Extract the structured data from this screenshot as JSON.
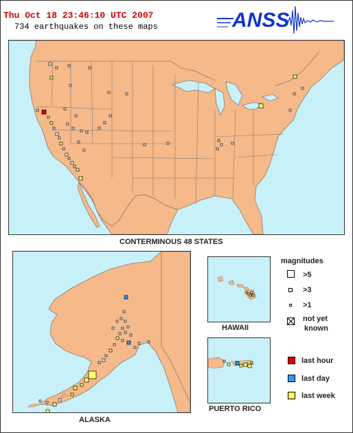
{
  "header": {
    "timestamp": "Thu Oct 18 23:46:10 UTC 2007",
    "count_text": "734 earthquakes on these maps",
    "logo_text": "ANSS",
    "logo_wave_icon": "seismogram-icon"
  },
  "maps": {
    "conus_caption": "CONTERMINOUS 48 STATES",
    "alaska_caption": "ALASKA",
    "hawaii_caption": "HAWAII",
    "puerto_rico_caption": "PUERTO RICO"
  },
  "legend": {
    "title": "magnitudes",
    "magnitudes": [
      {
        "label": ">5",
        "icon": "large-square-icon"
      },
      {
        "label": ">3",
        "icon": "medium-square-icon"
      },
      {
        "label": ">1",
        "icon": "small-square-icon"
      },
      {
        "label": "not yet known",
        "icon": "crossed-square-icon"
      }
    ],
    "not_yet_line1": "not yet",
    "not_yet_line2": "known",
    "ages": [
      {
        "label": "last hour",
        "color": "#e00000"
      },
      {
        "label": "last day",
        "color": "#3399ff"
      },
      {
        "label": "last week",
        "color": "#ffff66"
      }
    ]
  },
  "colors": {
    "land": "#f5b98a",
    "water": "#c8f0f8",
    "border": "#8a7a70",
    "title_red": "#cc0000",
    "logo_blue": "#1133cc"
  }
}
